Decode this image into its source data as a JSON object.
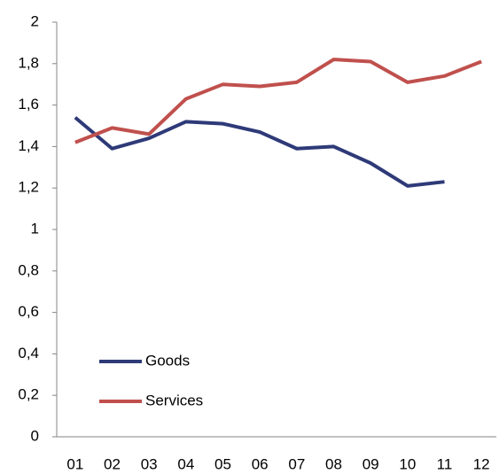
{
  "chart_data": {
    "type": "line",
    "categories": [
      "01",
      "02",
      "03",
      "04",
      "05",
      "06",
      "07",
      "08",
      "09",
      "10",
      "11",
      "12"
    ],
    "series": [
      {
        "name": "Goods",
        "color": "#2e3a78",
        "values": [
          1.54,
          1.39,
          1.44,
          1.52,
          1.51,
          1.47,
          1.39,
          1.4,
          1.32,
          1.21,
          1.23,
          null
        ]
      },
      {
        "name": "Services",
        "color": "#c0504d",
        "values": [
          1.42,
          1.49,
          1.46,
          1.63,
          1.7,
          1.69,
          1.71,
          1.82,
          1.81,
          1.71,
          1.74,
          1.81
        ]
      }
    ],
    "ylim": [
      0,
      2
    ],
    "yticks": [
      0,
      {
        "value": 0.2,
        "label": "0,2"
      },
      {
        "value": 0.4,
        "label": "0,4"
      },
      {
        "value": 0.6,
        "label": "0,6"
      },
      {
        "value": 0.8,
        "label": "0,8"
      },
      1,
      {
        "value": 1.2,
        "label": "1,2"
      },
      {
        "value": 1.4,
        "label": "1,4"
      },
      {
        "value": 1.6,
        "label": "1,6"
      },
      {
        "value": 1.8,
        "label": "1,8"
      },
      2
    ],
    "legend": "lower-left"
  }
}
